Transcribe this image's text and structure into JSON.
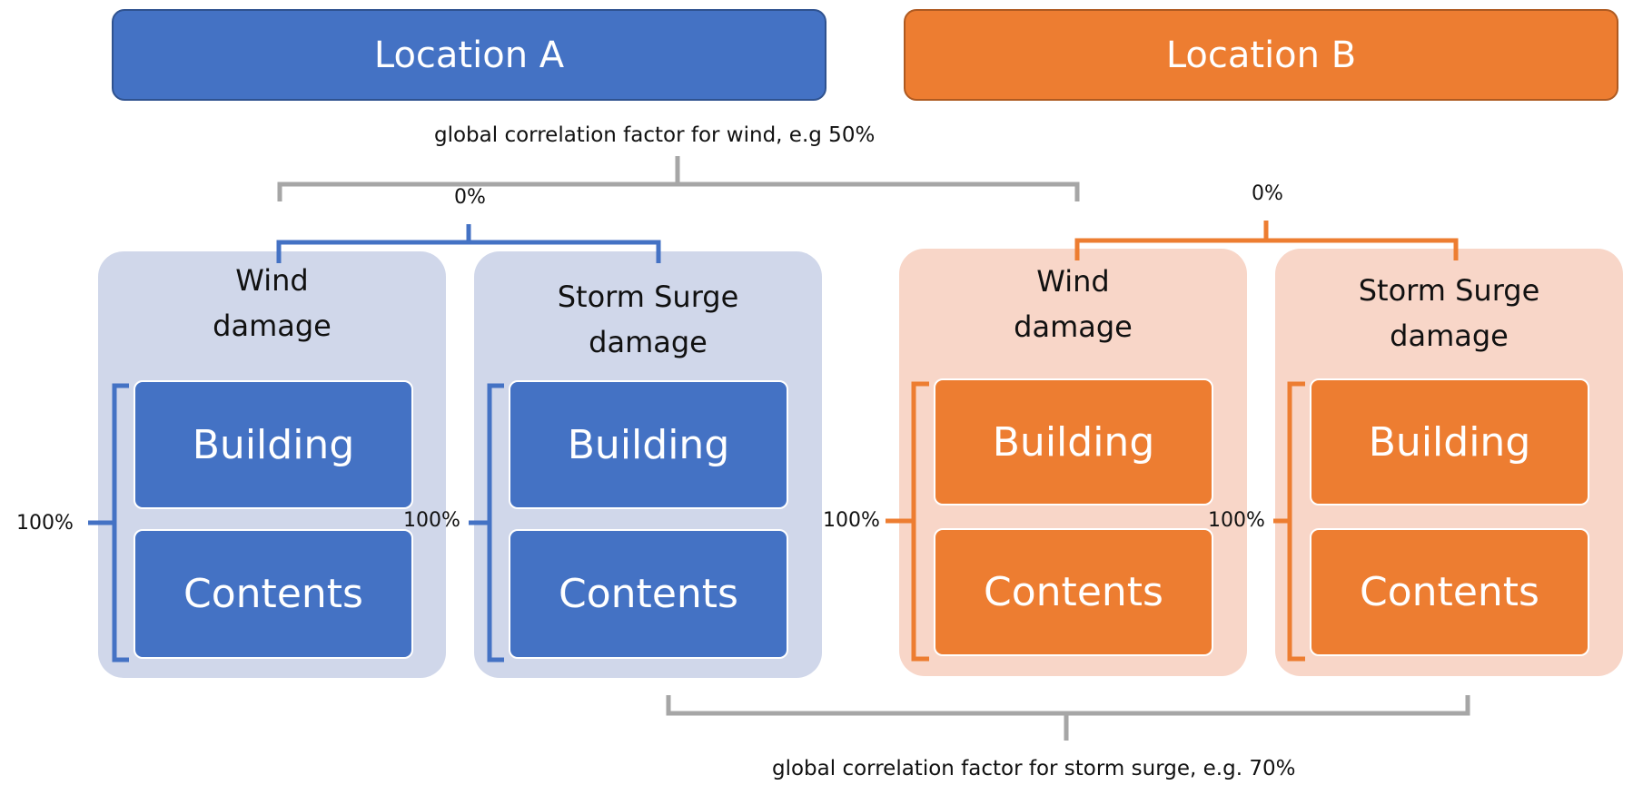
{
  "colors": {
    "location_a": "#4472c4",
    "location_a_panel": "#d0d7ea",
    "location_b": "#ed7d31",
    "location_b_panel": "#f8d6c8",
    "global_bracket": "#a6a6a6"
  },
  "location_a": {
    "title": "Location A",
    "intra_correlation": "0%",
    "wind": {
      "title": "Wind\ndamage",
      "building": "Building",
      "contents": "Contents",
      "correlation": "100%"
    },
    "surge": {
      "title": "Storm Surge\ndamage",
      "building": "Building",
      "contents": "Contents",
      "correlation": "100%"
    }
  },
  "location_b": {
    "title": "Location B",
    "intra_correlation": "0%",
    "wind": {
      "title": "Wind\ndamage",
      "building": "Building",
      "contents": "Contents",
      "correlation": "100%"
    },
    "surge": {
      "title": "Storm Surge\ndamage",
      "building": "Building",
      "contents": "Contents",
      "correlation": "100%"
    }
  },
  "captions": {
    "wind_global": "global correlation factor for wind, e.g 50%",
    "surge_global": "global correlation factor for storm surge, e.g. 70%"
  }
}
